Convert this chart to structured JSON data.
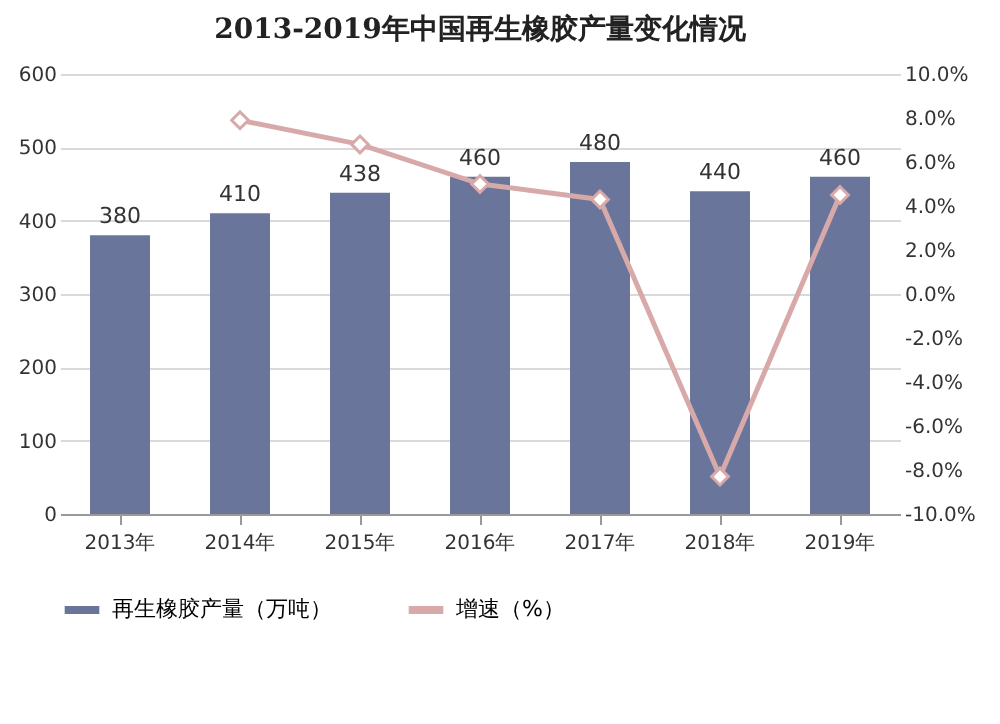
{
  "chart_data": {
    "type": "bar",
    "title": "2013-2019年中国再生橡胶产量变化情况",
    "categories": [
      "2013年",
      "2014年",
      "2015年",
      "2016年",
      "2017年",
      "2018年",
      "2019年"
    ],
    "series": [
      {
        "name": "再生橡胶产量（万吨）",
        "color": "#6a759b",
        "values": [
          380,
          410,
          438,
          460,
          480,
          440,
          460
        ],
        "value_labels": [
          "380",
          "410",
          "438",
          "460",
          "480",
          "440",
          "460"
        ]
      },
      {
        "name": "增速（%）",
        "type": "line",
        "axis": "y2",
        "color": "#d8a9a9",
        "marker": "diamond",
        "values": [
          null,
          7.9,
          6.8,
          5.0,
          4.3,
          -8.3,
          4.5
        ]
      }
    ],
    "ylim": [
      0,
      600
    ],
    "yticks": [
      0,
      100,
      200,
      300,
      400,
      500,
      600
    ],
    "y2lim": [
      -10,
      10
    ],
    "y2ticks": [
      {
        "value": -10,
        "label": "-10.0%"
      },
      {
        "value": -8,
        "label": "-8.0%"
      },
      {
        "value": -6,
        "label": "-6.0%"
      },
      {
        "value": -4,
        "label": "-4.0%"
      },
      {
        "value": -2,
        "label": "-2.0%"
      },
      {
        "value": 0,
        "label": "0.0%"
      },
      {
        "value": 2,
        "label": "2.0%"
      },
      {
        "value": 4,
        "label": "4.0%"
      },
      {
        "value": 6,
        "label": "6.0%"
      },
      {
        "value": 8,
        "label": "8.0%"
      },
      {
        "value": 10,
        "label": "10.0%"
      }
    ],
    "grid": "y",
    "legend": "bottom"
  }
}
